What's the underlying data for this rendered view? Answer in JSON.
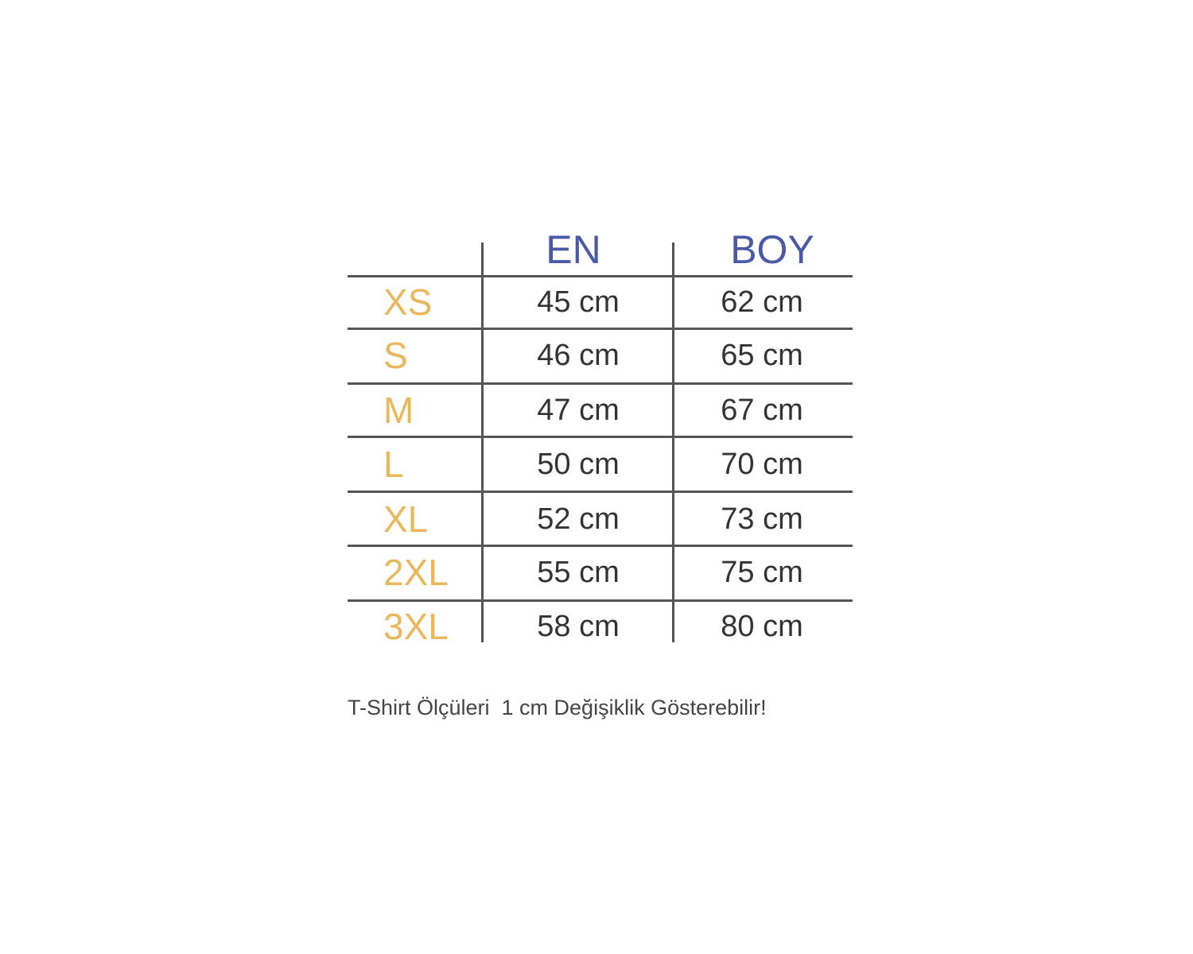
{
  "table": {
    "headers": [
      "EN",
      "BOY"
    ],
    "rows": [
      {
        "size": "XS",
        "en": "45 cm",
        "boy": "62 cm"
      },
      {
        "size": "S",
        "en": "46 cm",
        "boy": "65 cm"
      },
      {
        "size": "M",
        "en": "47 cm",
        "boy": "67 cm"
      },
      {
        "size": "L",
        "en": "50 cm",
        "boy": "70 cm"
      },
      {
        "size": "XL",
        "en": "52 cm",
        "boy": "73 cm"
      },
      {
        "size": "2XL",
        "en": "55 cm",
        "boy": "75 cm"
      },
      {
        "size": "3XL",
        "en": "58 cm",
        "boy": "80 cm"
      }
    ]
  },
  "note": "T-Shirt Ölçüleri  1 cm Değişiklik Gösterebilir!",
  "colors": {
    "header": "#4a5aa6",
    "size_label": "#e9b75c",
    "value": "#333333"
  }
}
